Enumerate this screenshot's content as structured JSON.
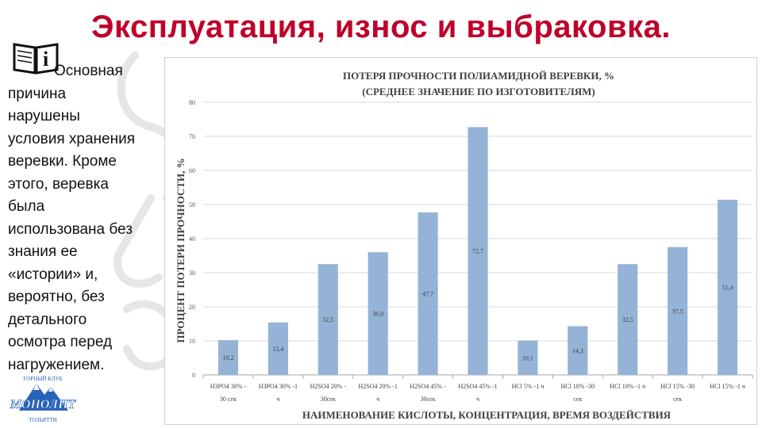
{
  "slide": {
    "title": "Эксплуатация, износ и выбраковка.",
    "body_lines": [
      "Основная",
      "причина",
      "нарушены",
      "условия хранения",
      "веревки. Кроме",
      "этого, веревка",
      "была",
      "использована без",
      "знания ее",
      "«истории» и,",
      "вероятно, без",
      "детального",
      "осмотра перед",
      "нагружением."
    ],
    "logo_texts": {
      "top": "ГОРНЫЙ КЛУБ",
      "name": "МОНОЛИТ",
      "city": "ТОЛЬЯТТИ"
    }
  },
  "chart_data": {
    "type": "bar",
    "title": "ПОТЕРЯ ПРОЧНОСТИ ПОЛИАМИДНОЙ ВЕРЕВКИ, %",
    "subtitle": "(СРЕДНЕЕ ЗНАЧЕНИЕ ПО ИЗГОТОВИТЕЛЯМ)",
    "ylabel": "ПРОЦЕНТ ПОТЕРИ ПРОЧНОСТИ, %",
    "xlabel": "НАИМЕНОВАНИЕ КИСЛОТЫ, КОНЦЕНТРАЦИЯ, ВРЕМЯ ВОЗДЕЙСТВИЯ",
    "ylim": [
      0,
      80
    ],
    "yticks": [
      0,
      10,
      20,
      30,
      40,
      50,
      60,
      70,
      80
    ],
    "grid": true,
    "bar_color": "#95b3d7",
    "categories": [
      [
        "H3PO4 30% -",
        "30 сек"
      ],
      [
        "H3PO4 30% -1",
        "ч"
      ],
      [
        "H2SO4 20% -",
        "30сек"
      ],
      [
        "H2SO4 20% -1",
        "ч"
      ],
      [
        "H2SO4 45% -",
        "30сек"
      ],
      [
        "H2SO4 45% -1",
        "ч"
      ],
      [
        "HCl 5% -1 ч",
        ""
      ],
      [
        "HCl 10% -30",
        "сек"
      ],
      [
        "HCl 10% -1 ч",
        ""
      ],
      [
        "HCl 15% -30",
        "сек"
      ],
      [
        "HCl 15% -1 ч",
        ""
      ]
    ],
    "values": [
      10.2,
      15.4,
      32.5,
      36.0,
      47.7,
      72.7,
      10.1,
      14.3,
      32.5,
      37.5,
      51.4
    ],
    "value_labels": [
      "10,2",
      "15,4",
      "32,5",
      "36,0",
      "47,7",
      "72,7",
      "10,1",
      "14,3",
      "32,5",
      "37,5",
      "51,4"
    ]
  }
}
